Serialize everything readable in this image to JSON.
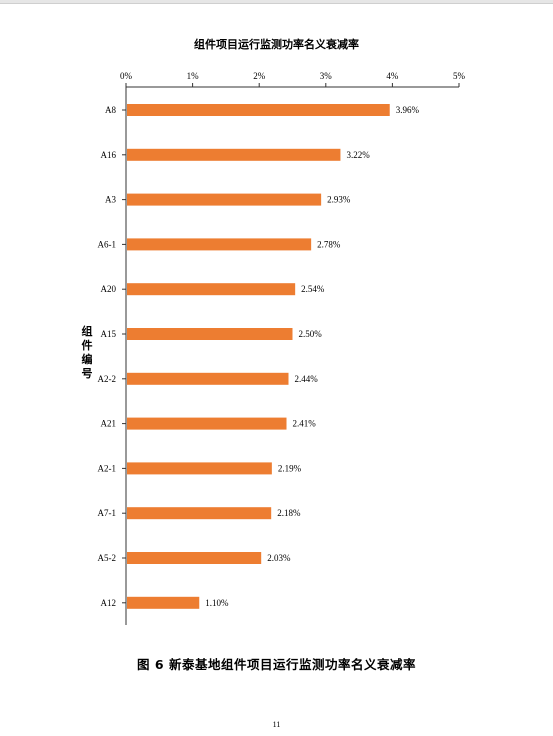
{
  "chart_data": {
    "type": "bar",
    "orientation": "horizontal",
    "title": "组件项目运行监测功率名义衰减率",
    "ylabel": "组件编号",
    "xlabel": "",
    "xlim": [
      0,
      5
    ],
    "x_axis_position": "top",
    "x_tick_labels": [
      "0%",
      "1%",
      "2%",
      "3%",
      "4%",
      "5%"
    ],
    "categories": [
      "A8",
      "A16",
      "A3",
      "A6-1",
      "A20",
      "A15",
      "A2-2",
      "A21",
      "A2-1",
      "A7-1",
      "A5-2",
      "A12"
    ],
    "values": [
      3.96,
      3.22,
      2.93,
      2.78,
      2.54,
      2.5,
      2.44,
      2.41,
      2.19,
      2.18,
      2.03,
      1.1
    ],
    "value_labels": [
      "3.96%",
      "3.22%",
      "2.93%",
      "2.78%",
      "2.54%",
      "2.50%",
      "2.44%",
      "2.41%",
      "2.19%",
      "2.18%",
      "2.03%",
      "1.10%"
    ],
    "grid": false,
    "legend": "none",
    "bar_color": "#ED7D31"
  },
  "caption": "图 6  新泰基地组件项目运行监测功率名义衰减率",
  "page_number": "11"
}
